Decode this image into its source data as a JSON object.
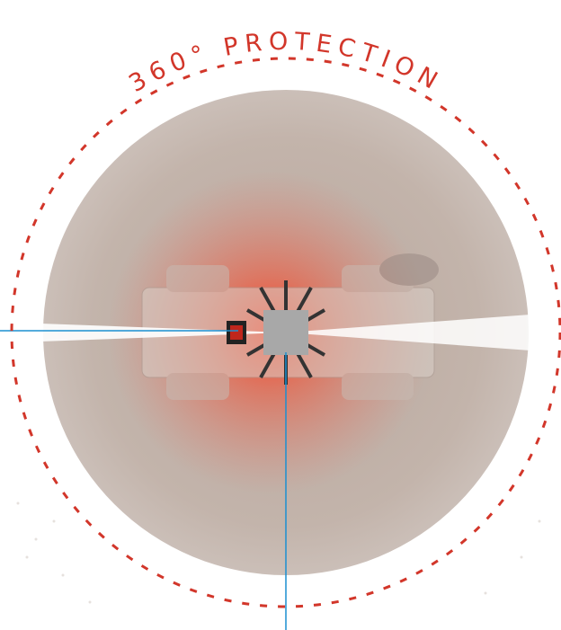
{
  "title": "360° PROTECTION"
}
